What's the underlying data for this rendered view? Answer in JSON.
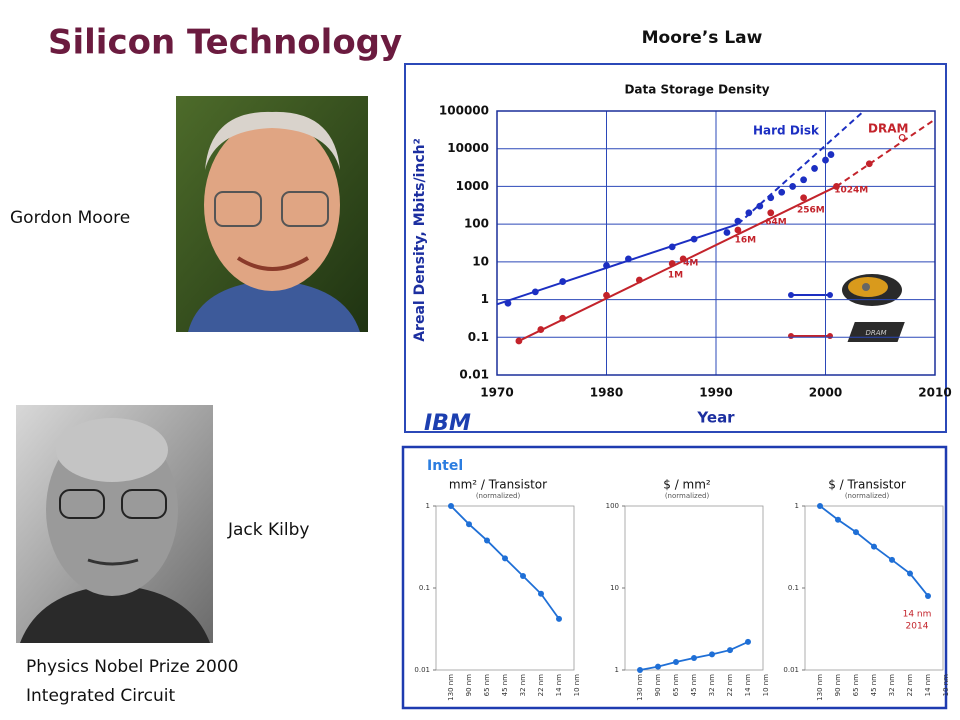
{
  "title": "Silicon Technology",
  "heading": "Moore’s Law",
  "people": [
    {
      "name": "Gordon Moore"
    },
    {
      "name": "Jack Kilby",
      "notes": [
        "Physics Nobel Prize 2000",
        "Integrated Circuit"
      ]
    }
  ],
  "logo": "IBM",
  "panel_label": "Intel",
  "chart_data": [
    {
      "type": "scatter",
      "title": "Data Storage Density",
      "xlabel": "Year",
      "ylabel": "Areal Density, Mbits/inch²",
      "log_y": true,
      "grid": true,
      "xlim": [
        1970,
        2010
      ],
      "xticks": [
        1970,
        1980,
        1990,
        2000,
        2010
      ],
      "ylim": [
        0.01,
        100000
      ],
      "yticks": [
        100000,
        10000,
        1000,
        100,
        10,
        1,
        0.1,
        0.01
      ],
      "series": [
        {
          "name": "Hard Disk",
          "color": "#1c2fc2",
          "x": [
            1971,
            1973.5,
            1976,
            1980,
            1982,
            1986,
            1988,
            1991,
            1992,
            1993,
            1994,
            1995,
            1996,
            1997,
            1998,
            1999,
            2000,
            2000.5
          ],
          "values": [
            0.8,
            1.6,
            3,
            8,
            12,
            25,
            40,
            60,
            120,
            200,
            300,
            500,
            700,
            1000,
            1500,
            3000,
            5000,
            7000
          ],
          "trend": {
            "x": [
              1970,
              1992,
              2003.5
            ],
            "values": [
              0.75,
              100,
              100000
            ]
          }
        },
        {
          "name": "DRAM",
          "color": "#c3232b",
          "x": [
            1972,
            1974,
            1976,
            1980,
            1983,
            1986,
            1987,
            1992,
            1995,
            1998,
            2001,
            2004,
            2007
          ],
          "values": [
            0.08,
            0.16,
            0.32,
            1.3,
            3.3,
            9,
            12,
            70,
            200,
            500,
            1000,
            4000,
            20000
          ],
          "trend": {
            "x": [
              1972,
              2001,
              2010
            ],
            "values": [
              0.08,
              1000,
              60000
            ]
          }
        }
      ],
      "annotations": [
        {
          "text": "1M",
          "x": 1985.6,
          "y": 4.5
        },
        {
          "text": "4M",
          "x": 1987.0,
          "y": 9.3
        },
        {
          "text": "16M",
          "x": 1991.7,
          "y": 38
        },
        {
          "text": "64M",
          "x": 1994.5,
          "y": 115
        },
        {
          "text": "256M",
          "x": 1997.4,
          "y": 240
        },
        {
          "text": "1024M",
          "x": 2000.8,
          "y": 810
        }
      ]
    },
    {
      "type": "line",
      "title": "mm² / Transistor",
      "subtitle": "(normalized)",
      "log_y": true,
      "color": "#1f6fd6",
      "categories": [
        "130 nm",
        "90 nm",
        "65 nm",
        "45 nm",
        "32 nm",
        "22 nm",
        "14 nm",
        "10 nm"
      ],
      "values": [
        1,
        0.6,
        0.38,
        0.23,
        0.14,
        0.085,
        0.042,
        null
      ],
      "ylim": [
        0.01,
        1
      ],
      "yticks": [
        1,
        0.1,
        0.01
      ]
    },
    {
      "type": "line",
      "title": "$ / mm²",
      "subtitle": "(normalized)",
      "log_y": true,
      "color": "#1f6fd6",
      "categories": [
        "130 nm",
        "90 nm",
        "65 nm",
        "45 nm",
        "32 nm",
        "22 nm",
        "14 nm",
        "10 nm"
      ],
      "values": [
        1,
        1.1,
        1.25,
        1.4,
        1.55,
        1.75,
        2.2,
        null
      ],
      "ylim": [
        1,
        100
      ],
      "yticks": [
        100,
        10,
        1
      ]
    },
    {
      "type": "line",
      "title": "$ / Transistor",
      "subtitle": "(normalized)",
      "log_y": true,
      "color": "#1f6fd6",
      "categories": [
        "130 nm",
        "90 nm",
        "65 nm",
        "45 nm",
        "32 nm",
        "22 nm",
        "14 nm",
        "10 nm"
      ],
      "values": [
        1,
        0.68,
        0.48,
        0.32,
        0.22,
        0.15,
        0.08,
        null
      ],
      "ylim": [
        0.01,
        1
      ],
      "yticks": [
        1,
        0.1,
        0.01
      ],
      "annotations": [
        "14 nm",
        "2014"
      ]
    }
  ]
}
